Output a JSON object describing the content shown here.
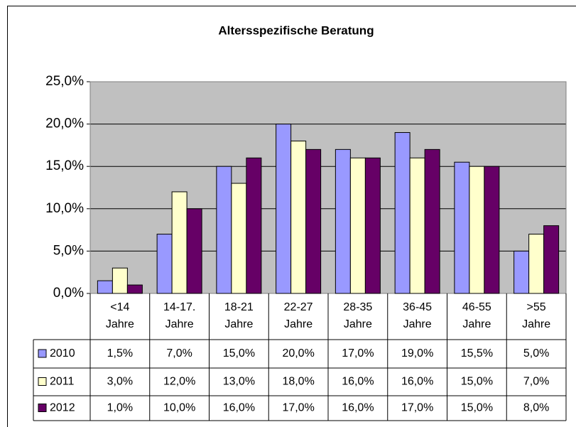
{
  "chart_data": {
    "type": "bar",
    "title": "Altersspezifische Beratung",
    "categories": [
      "<14 Jahre",
      "14-17. Jahre",
      "18-21 Jahre",
      "22-27 Jahre",
      "28-35 Jahre",
      "36-45 Jahre",
      "46-55 Jahre",
      ">55 Jahre"
    ],
    "series": [
      {
        "name": "2010",
        "color": "#9999ff",
        "values": [
          1.5,
          7.0,
          15.0,
          20.0,
          17.0,
          19.0,
          15.5,
          5.0
        ],
        "value_labels": [
          "1,5%",
          "7,0%",
          "15,0%",
          "20,0%",
          "17,0%",
          "19,0%",
          "15,5%",
          "5,0%"
        ]
      },
      {
        "name": "2011",
        "color": "#ffffcc",
        "values": [
          3.0,
          12.0,
          13.0,
          18.0,
          16.0,
          16.0,
          15.0,
          7.0
        ],
        "value_labels": [
          "3,0%",
          "12,0%",
          "13,0%",
          "18,0%",
          "16,0%",
          "16,0%",
          "15,0%",
          "7,0%"
        ]
      },
      {
        "name": "2012",
        "color": "#660066",
        "values": [
          1.0,
          10.0,
          16.0,
          17.0,
          16.0,
          17.0,
          15.0,
          8.0
        ],
        "value_labels": [
          "1,0%",
          "10,0%",
          "16,0%",
          "17,0%",
          "16,0%",
          "17,0%",
          "15,0%",
          "8,0%"
        ]
      }
    ],
    "ylim": [
      0,
      25
    ],
    "yticks": [
      {
        "value": 0,
        "label": "0,0%"
      },
      {
        "value": 5,
        "label": "5,0%"
      },
      {
        "value": 10,
        "label": "10,0%"
      },
      {
        "value": 15,
        "label": "15,0%"
      },
      {
        "value": 20,
        "label": "20,0%"
      },
      {
        "value": 25,
        "label": "25,0%"
      }
    ],
    "grid": true,
    "plot_background": "#c0c0c0"
  }
}
